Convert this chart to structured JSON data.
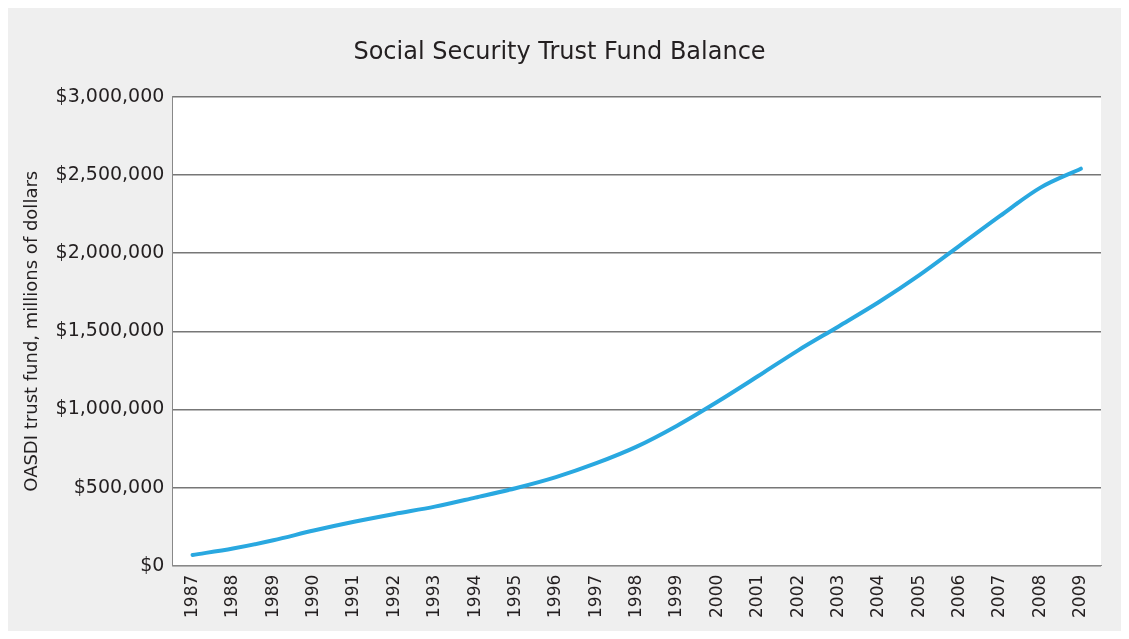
{
  "chart_data": {
    "type": "line",
    "title": "Social Security Trust Fund Balance",
    "ylabel": "OASDI trust fund, millions of dollars",
    "categories": [
      "1987",
      "1988",
      "1989",
      "1990",
      "1991",
      "1992",
      "1993",
      "1994",
      "1995",
      "1996",
      "1997",
      "1998",
      "1999",
      "2000",
      "2001",
      "2002",
      "2003",
      "2004",
      "2005",
      "2006",
      "2007",
      "2008",
      "2009"
    ],
    "series": [
      {
        "color": "#29a8e0",
        "values": [
          69000,
          110000,
          163000,
          225000,
          281000,
          331000,
          378000,
          436000,
          496000,
          567000,
          656000,
          762000,
          896000,
          1049000,
          1212000,
          1378000,
          1531000,
          1687000,
          1859000,
          2048000,
          2238000,
          2419000,
          2540000
        ]
      }
    ],
    "ylim": [
      0,
      3000000
    ],
    "yticks": [
      {
        "value": 0,
        "label": "$0"
      },
      {
        "value": 500000,
        "label": "$500,000"
      },
      {
        "value": 1000000,
        "label": "$1,000,000"
      },
      {
        "value": 1500000,
        "label": "$1,500,000"
      },
      {
        "value": 2000000,
        "label": "$2,000,000"
      },
      {
        "value": 2500000,
        "label": "$2,500,000"
      },
      {
        "value": 3000000,
        "label": "$3,000,000"
      }
    ],
    "grid": "y",
    "legend": false,
    "marker": "none",
    "line_style": "solid"
  }
}
